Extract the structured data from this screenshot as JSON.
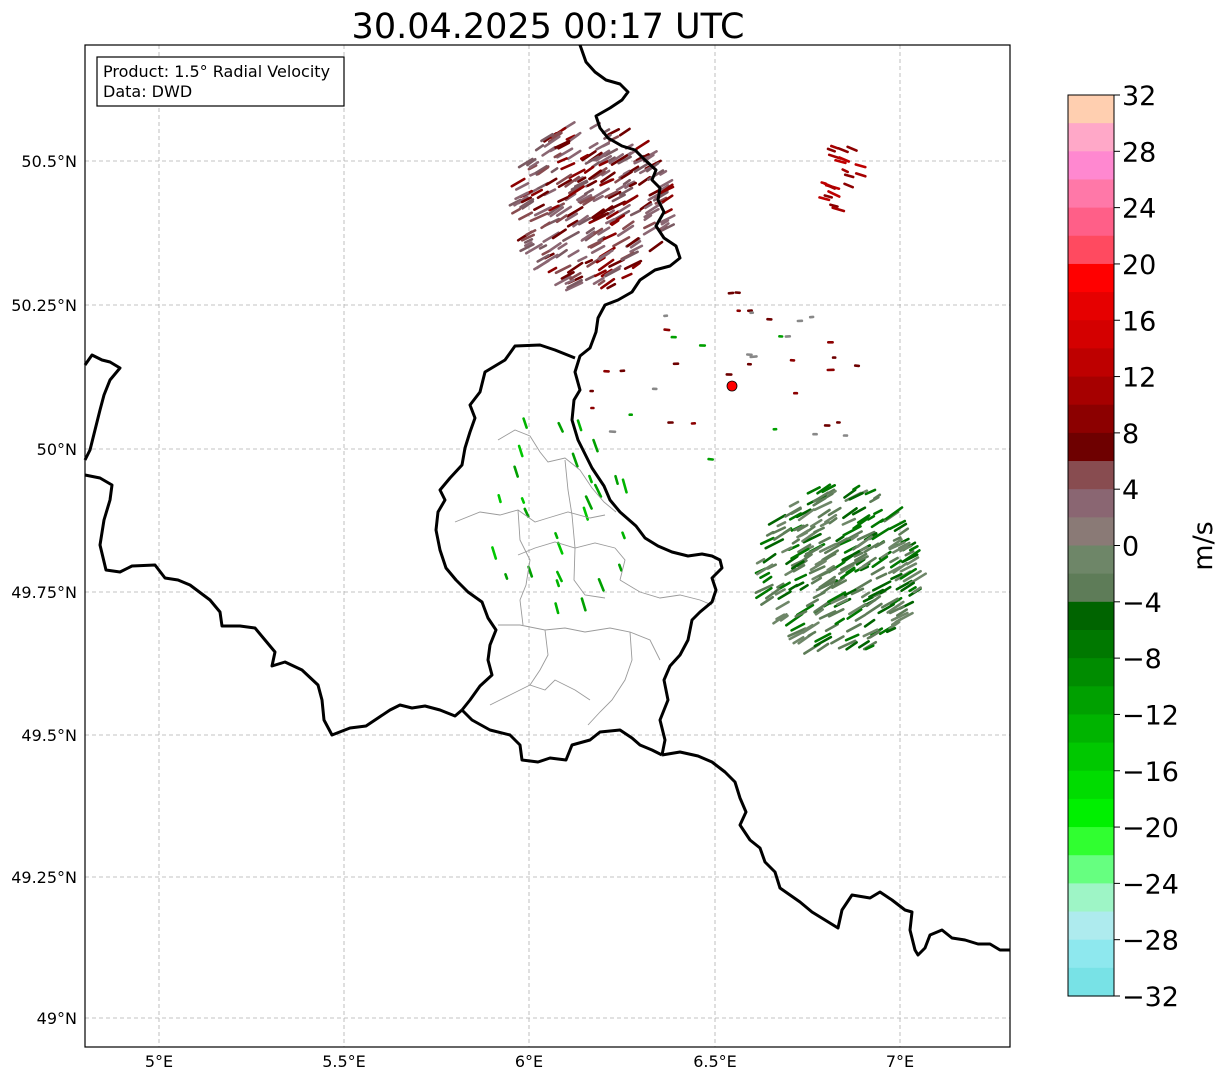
{
  "title": "30.04.2025 00:17 UTC",
  "legend_box": {
    "product": "Product: 1.5° Radial Velocity",
    "data_source": "Data: DWD"
  },
  "axes": {
    "lon_ticks": [
      "5°E",
      "5.5°E",
      "6°E",
      "6.5°E",
      "7°E"
    ],
    "lat_ticks": [
      "50.5°N",
      "50.25°N",
      "50°N",
      "49.75°N",
      "49.5°N",
      "49.25°N",
      "49°N"
    ]
  },
  "colorbar": {
    "unit": "m/s",
    "min": -32,
    "max": 32,
    "ticks": [
      "32",
      "28",
      "24",
      "20",
      "16",
      "12",
      "8",
      "4",
      "0",
      "−4",
      "−8",
      "−12",
      "−16",
      "−20",
      "−24",
      "−28",
      "−32"
    ],
    "colors_top_to_bottom": [
      "#ffcfb0",
      "#ffa8c8",
      "#ff88d0",
      "#ff78a8",
      "#ff5f88",
      "#ff4a60",
      "#ff0000",
      "#e60000",
      "#d40000",
      "#be0000",
      "#a60000",
      "#8c0000",
      "#6e0000",
      "#884c50",
      "#8a6672",
      "#8a7a76",
      "#6e8668",
      "#5e7c58",
      "#006400",
      "#007800",
      "#008c00",
      "#00a000",
      "#00b400",
      "#00c800",
      "#00dc00",
      "#00f000",
      "#30ff30",
      "#66ff80",
      "#9ef5c6",
      "#aeebee",
      "#8ee8ee",
      "#78e2e6"
    ]
  },
  "radar_site": {
    "color": "#ff0000"
  }
}
